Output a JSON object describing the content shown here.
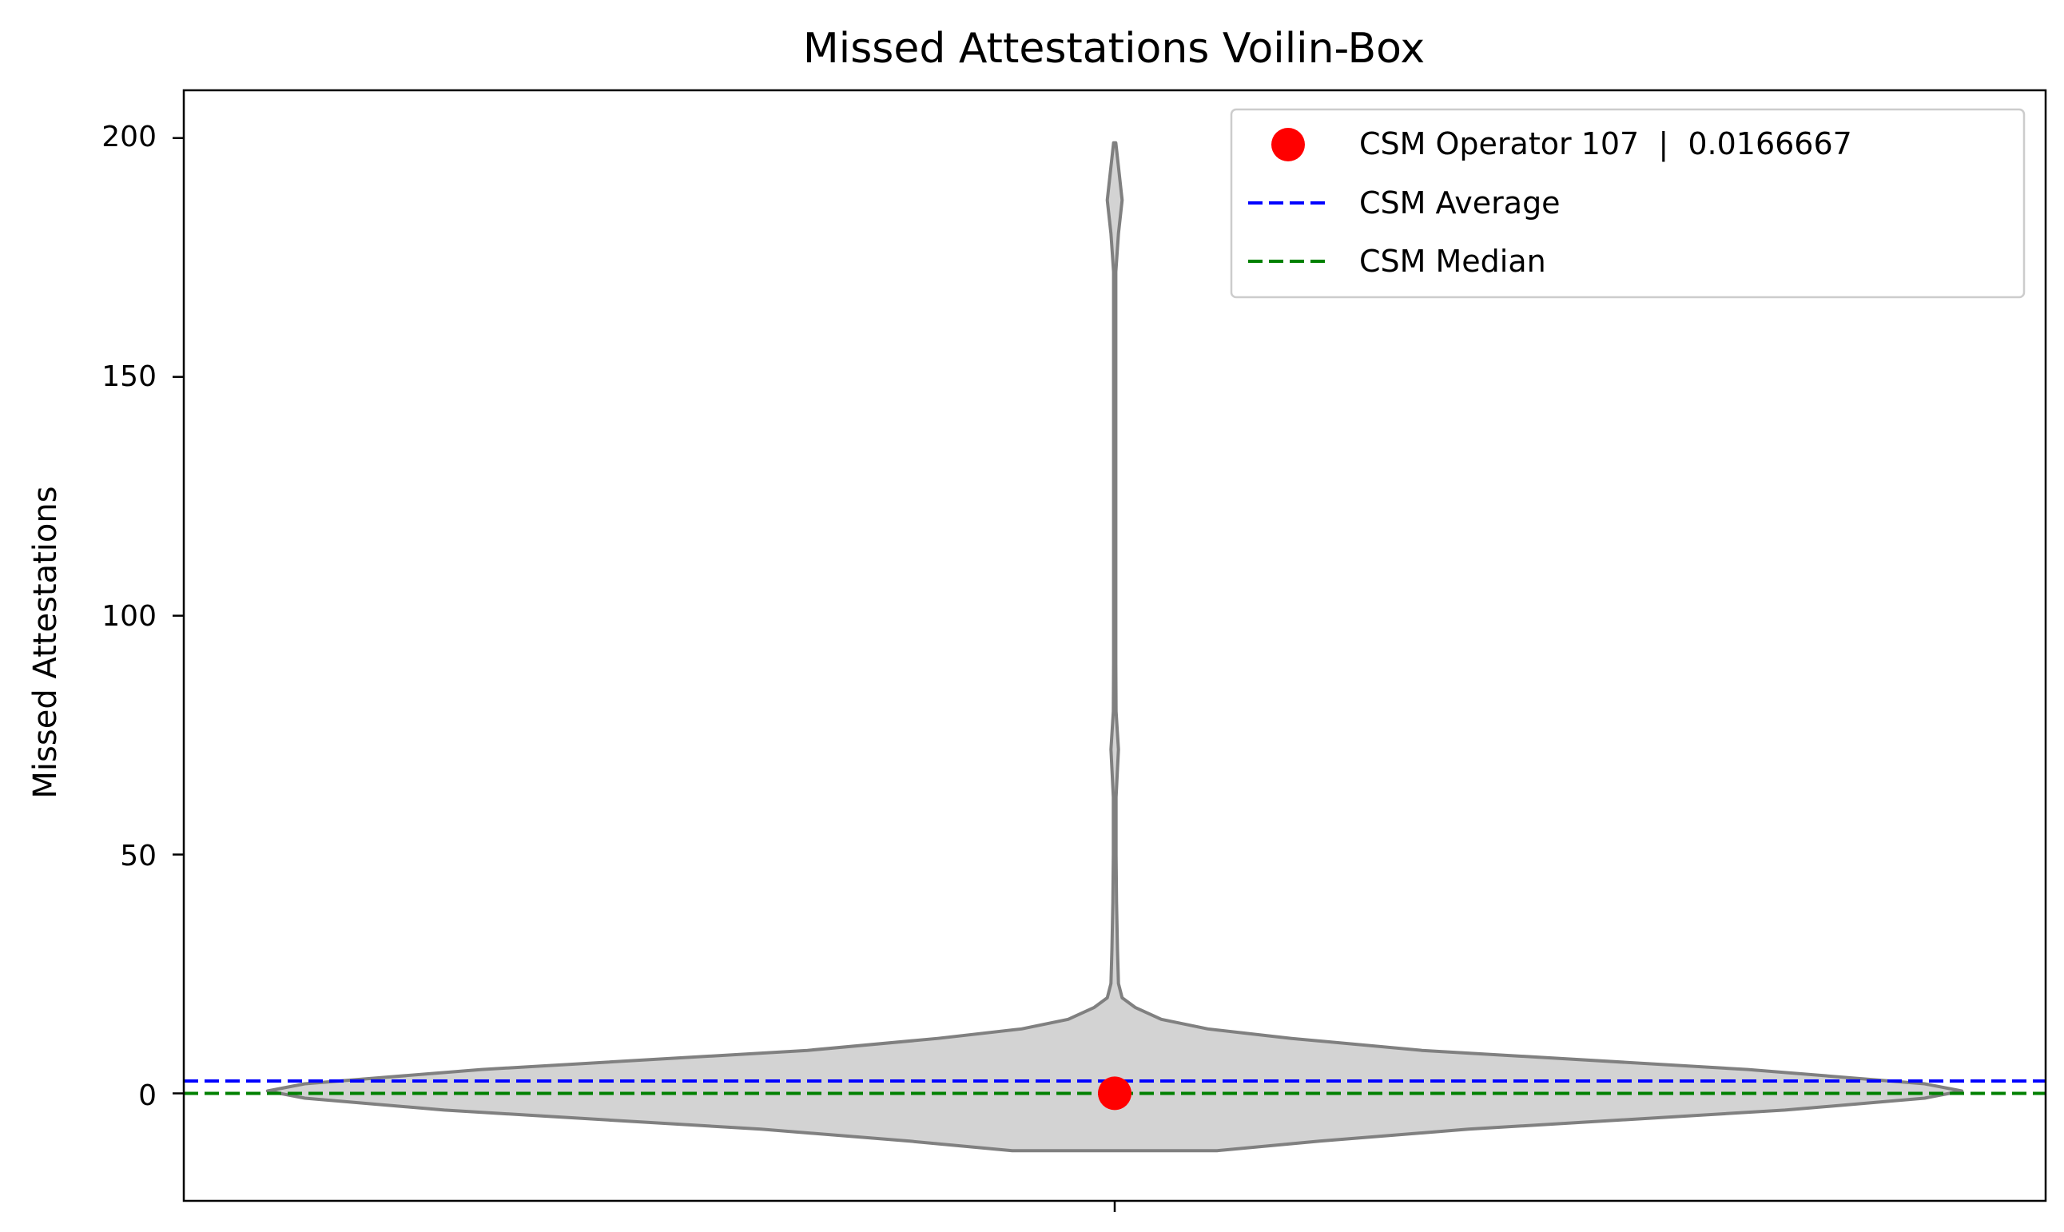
{
  "chart_data": {
    "type": "violin",
    "title": "Missed Attestations Voilin-Box",
    "xlabel": "",
    "ylabel": "Missed Attestations",
    "ylim": [
      -22.5,
      210
    ],
    "yticks": [
      0,
      50,
      100,
      150,
      200
    ],
    "ytick_labels": [
      "0",
      "50",
      "100",
      "150",
      "200"
    ],
    "grid": false,
    "legend_position": "top-right",
    "violin": {
      "fill_color": "#d3d3d3",
      "edge_color": "#808080",
      "profile": [
        {
          "y": -12.0,
          "half_width": 0.11
        },
        {
          "y": -10.0,
          "half_width": 0.22
        },
        {
          "y": -7.5,
          "half_width": 0.38
        },
        {
          "y": -3.5,
          "half_width": 0.72
        },
        {
          "y": -1.0,
          "half_width": 0.87
        },
        {
          "y": 0.5,
          "half_width": 0.91
        },
        {
          "y": 2.0,
          "half_width": 0.87
        },
        {
          "y": 5.0,
          "half_width": 0.68
        },
        {
          "y": 9.0,
          "half_width": 0.33
        },
        {
          "y": 11.5,
          "half_width": 0.19
        },
        {
          "y": 13.5,
          "half_width": 0.1
        },
        {
          "y": 15.5,
          "half_width": 0.05
        },
        {
          "y": 18.0,
          "half_width": 0.022
        },
        {
          "y": 20.0,
          "half_width": 0.008
        },
        {
          "y": 23.0,
          "half_width": 0.004
        },
        {
          "y": 30.0,
          "half_width": 0.003
        },
        {
          "y": 40.0,
          "half_width": 0.002
        },
        {
          "y": 50.0,
          "half_width": 0.0015
        },
        {
          "y": 62.0,
          "half_width": 0.0015
        },
        {
          "y": 72.0,
          "half_width": 0.004
        },
        {
          "y": 80.0,
          "half_width": 0.0015
        },
        {
          "y": 90.0,
          "half_width": 0.0012
        },
        {
          "y": 120.0,
          "half_width": 0.0012
        },
        {
          "y": 150.0,
          "half_width": 0.0012
        },
        {
          "y": 172.0,
          "half_width": 0.0012
        },
        {
          "y": 180.0,
          "half_width": 0.004
        },
        {
          "y": 187.0,
          "half_width": 0.008
        },
        {
          "y": 194.0,
          "half_width": 0.004
        },
        {
          "y": 199.0,
          "half_width": 0.0012
        }
      ]
    },
    "operator_point": {
      "label": "CSM Operator 107  |  0.0166667",
      "value": 0.0166667,
      "color": "#ff0000"
    },
    "average": {
      "label": "CSM Average",
      "value": 2.6,
      "color": "#0000ff"
    },
    "median": {
      "label": "CSM Median",
      "value": 0,
      "color": "#008000"
    }
  }
}
